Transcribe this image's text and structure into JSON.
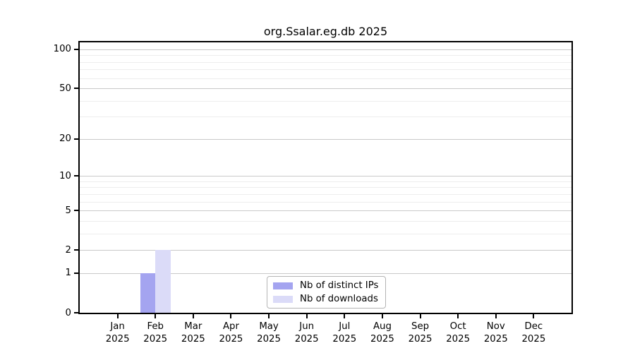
{
  "title": "org.Ssalar.eg.db 2025",
  "chart_data": {
    "type": "bar",
    "title": "org.Ssalar.eg.db 2025",
    "categories": [
      "Jan",
      "Feb",
      "Mar",
      "Apr",
      "May",
      "Jun",
      "Jul",
      "Aug",
      "Sep",
      "Oct",
      "Nov",
      "Dec"
    ],
    "year_label": "2025",
    "series": [
      {
        "name": "Nb of distinct IPs",
        "color": "#a4a4f0",
        "values": [
          0,
          1,
          0,
          0,
          0,
          0,
          0,
          0,
          0,
          0,
          0,
          0
        ]
      },
      {
        "name": "Nb of downloads",
        "color": "#dbdbf8",
        "values": [
          0,
          2,
          0,
          0,
          0,
          0,
          0,
          0,
          0,
          0,
          0,
          0
        ]
      }
    ],
    "y_axis": {
      "scale": "log1p",
      "ticks": [
        0,
        1,
        2,
        5,
        10,
        20,
        50,
        100
      ],
      "minor_ticks": [
        3,
        4,
        6,
        7,
        8,
        9,
        30,
        40,
        60,
        70,
        80,
        90
      ],
      "ylim": [
        0,
        113
      ]
    },
    "x_axis": {
      "tick_count": 12
    },
    "grid": {
      "major_color": "#c9c9c9",
      "minor_color": "#ededed"
    },
    "legend": {
      "position": "lower center",
      "entries": [
        "Nb of distinct IPs",
        "Nb of downloads"
      ]
    }
  }
}
